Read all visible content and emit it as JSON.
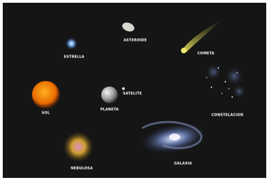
{
  "labels": {
    "estrella": "ESTRELLA",
    "asteroide": "ASTEROIDE",
    "cometa": "COMETA",
    "sol": "SOL",
    "planeta": "PLANETA",
    "satelite": "SATELITE",
    "constelacion": "CONSTELACION",
    "nebulosa": "NEBULOSA",
    "galaxia": "GALAXIA"
  }
}
